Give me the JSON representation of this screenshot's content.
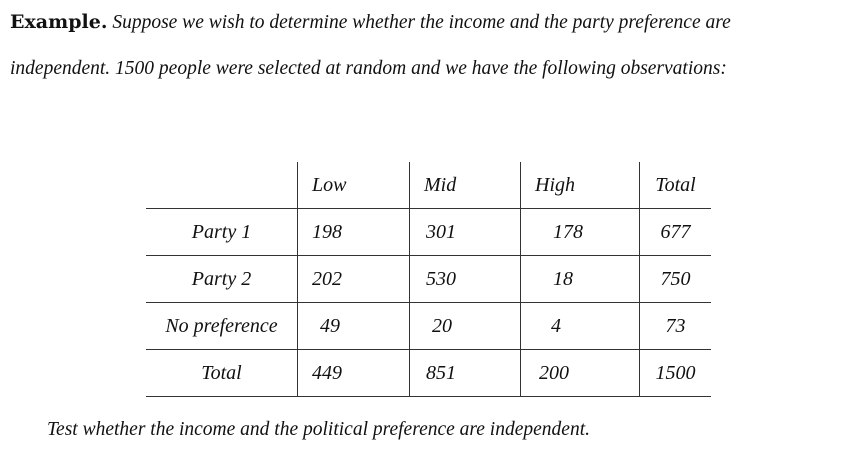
{
  "intro": {
    "label": "Example.",
    "line1": "Suppose we wish to determine whether the income and the party preference are",
    "line2": "independent. 1500 people were selected at random and we have the following observations:"
  },
  "table": {
    "columns": [
      "Low",
      "Mid",
      "High",
      "Total"
    ],
    "rows": [
      {
        "label": "Party 1",
        "values": [
          "198",
          "301",
          "178",
          "677"
        ]
      },
      {
        "label": "Party 2",
        "values": [
          "202",
          "530",
          "18",
          "750"
        ]
      },
      {
        "label": "No preference",
        "values": [
          "49",
          "20",
          "4",
          "73"
        ]
      },
      {
        "label": "Total",
        "values": [
          "449",
          "851",
          "200",
          "1500"
        ]
      }
    ]
  },
  "question": "Test whether the income and the political preference are independent."
}
